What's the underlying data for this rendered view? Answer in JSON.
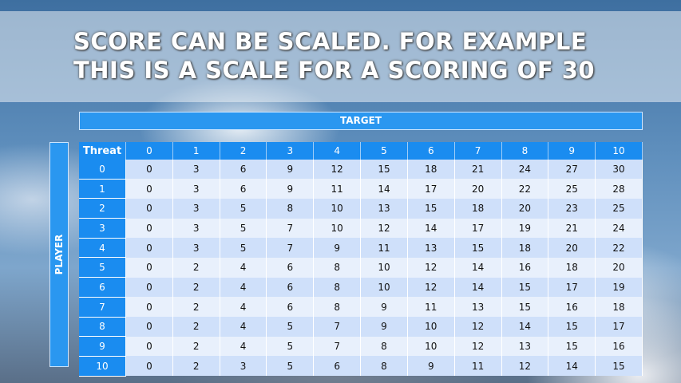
{
  "title": {
    "line1": "SCORE CAN BE SCALED. FOR EXAMPLE",
    "line2": "THIS IS A SCALE FOR A SCORING OF 30"
  },
  "target_label": "TARGET",
  "player_label": "PLAYER",
  "table": {
    "corner": "Threat",
    "columns": [
      "0",
      "1",
      "2",
      "3",
      "4",
      "5",
      "6",
      "7",
      "8",
      "9",
      "10"
    ],
    "rows": [
      {
        "label": "0",
        "values": [
          0,
          3,
          6,
          9,
          12,
          15,
          18,
          21,
          24,
          27,
          30
        ]
      },
      {
        "label": "1",
        "values": [
          0,
          3,
          6,
          9,
          11,
          14,
          17,
          20,
          22,
          25,
          28
        ]
      },
      {
        "label": "2",
        "values": [
          0,
          3,
          5,
          8,
          10,
          13,
          15,
          18,
          20,
          23,
          25
        ]
      },
      {
        "label": "3",
        "values": [
          0,
          3,
          5,
          7,
          10,
          12,
          14,
          17,
          19,
          21,
          24
        ]
      },
      {
        "label": "4",
        "values": [
          0,
          3,
          5,
          7,
          9,
          11,
          13,
          15,
          18,
          20,
          22
        ]
      },
      {
        "label": "5",
        "values": [
          0,
          2,
          4,
          6,
          8,
          10,
          12,
          14,
          16,
          18,
          20
        ]
      },
      {
        "label": "6",
        "values": [
          0,
          2,
          4,
          6,
          8,
          10,
          12,
          14,
          15,
          17,
          19
        ]
      },
      {
        "label": "7",
        "values": [
          0,
          2,
          4,
          6,
          8,
          9,
          11,
          13,
          15,
          16,
          18
        ]
      },
      {
        "label": "8",
        "values": [
          0,
          2,
          4,
          5,
          7,
          9,
          10,
          12,
          14,
          15,
          17
        ]
      },
      {
        "label": "9",
        "values": [
          0,
          2,
          4,
          5,
          7,
          8,
          10,
          12,
          13,
          15,
          16
        ]
      },
      {
        "label": "10",
        "values": [
          0,
          2,
          3,
          5,
          6,
          8,
          9,
          11,
          12,
          14,
          15
        ]
      }
    ]
  },
  "colors": {
    "header": "#1a8cf0",
    "row_odd": "#cfe0fa",
    "row_even": "#e8f0fc"
  }
}
